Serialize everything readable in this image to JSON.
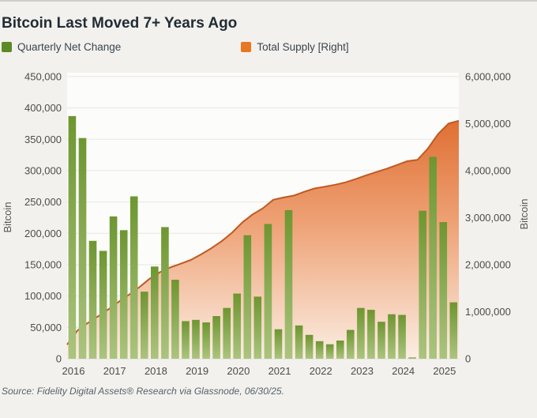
{
  "header": {
    "title": "Bitcoin Last Moved 7+ Years Ago"
  },
  "legend": [
    {
      "label": "Quarterly Net Change",
      "color": "#5d8a27"
    },
    {
      "label": "Total Supply [Right]",
      "color": "#e87722"
    }
  ],
  "footer": {
    "source": "Source: Fidelity Digital Assets® Research via Glassnode, 06/30/25."
  },
  "chart_data": {
    "type": "bar+area combo",
    "title": "Bitcoin Last Moved 7+ Years Ago",
    "grid": "horizontal, left-axis steps",
    "left_axis": {
      "title": "Bitcoin",
      "min": 0,
      "max": 450000,
      "tick_step": 50000,
      "tick_labels": [
        "450,000",
        "400,000",
        "350,000",
        "300,000",
        "250,000",
        "200,000",
        "150,000",
        "100,000",
        "50,000",
        "0"
      ],
      "tick_values": [
        450000,
        400000,
        350000,
        300000,
        250000,
        200000,
        150000,
        100000,
        50000,
        0
      ]
    },
    "right_axis": {
      "title": "Bitcoin",
      "min": 0,
      "max": 6000000,
      "tick_step": 1000000,
      "tick_labels": [
        "6,000,000",
        "5,000,000",
        "4,000,000",
        "3,000,000",
        "2,000,000",
        "1,000,000",
        "0"
      ],
      "tick_values": [
        6000000,
        5000000,
        4000000,
        3000000,
        2000000,
        1000000,
        0
      ]
    },
    "x_axis": {
      "year_labels": [
        "2016",
        "2017",
        "2018",
        "2019",
        "2020",
        "2021",
        "2022",
        "2023",
        "2024",
        "2025"
      ]
    },
    "series": [
      {
        "name": "Quarterly Net Change",
        "type": "bar",
        "axis": "left",
        "color_top": "#6d9630",
        "color_bottom": "#abc47f",
        "categories": [
          "2016 Q1",
          "2016 Q2",
          "2016 Q3",
          "2016 Q4",
          "2017 Q1",
          "2017 Q2",
          "2017 Q3",
          "2017 Q4",
          "2018 Q1",
          "2018 Q2",
          "2018 Q3",
          "2018 Q4",
          "2019 Q1",
          "2019 Q2",
          "2019 Q3",
          "2019 Q4",
          "2020 Q1",
          "2020 Q2",
          "2020 Q3",
          "2020 Q4",
          "2021 Q1",
          "2021 Q2",
          "2021 Q3",
          "2021 Q4",
          "2022 Q1",
          "2022 Q2",
          "2022 Q3",
          "2022 Q4",
          "2023 Q1",
          "2023 Q2",
          "2023 Q3",
          "2023 Q4",
          "2024 Q1",
          "2024 Q2",
          "2024 Q3",
          "2024 Q4",
          "2025 Q1",
          "2025 Q2"
        ],
        "values": [
          387000,
          352000,
          188000,
          172000,
          227000,
          205000,
          259000,
          107000,
          147000,
          210000,
          126000,
          60000,
          62000,
          58000,
          68000,
          81000,
          104000,
          197000,
          99000,
          215000,
          47000,
          237000,
          53000,
          38000,
          28000,
          23000,
          29000,
          46000,
          81000,
          78000,
          59000,
          71000,
          70000,
          2000,
          236000,
          322000,
          218000,
          90000
        ]
      },
      {
        "name": "Total Supply [Right]",
        "type": "area",
        "axis": "right",
        "line_color": "#bf5a22",
        "fill_top": "#de6b2d",
        "fill_mid": "#eea175",
        "fill_bottom": "#fbeee3",
        "x_year": [
          2016.0,
          2016.25,
          2016.5,
          2016.75,
          2017.0,
          2017.25,
          2017.5,
          2017.75,
          2018.0,
          2018.25,
          2018.5,
          2018.75,
          2019.0,
          2019.25,
          2019.5,
          2019.75,
          2020.0,
          2020.25,
          2020.5,
          2020.75,
          2021.0,
          2021.25,
          2021.5,
          2021.75,
          2022.0,
          2022.25,
          2022.5,
          2022.75,
          2023.0,
          2023.25,
          2023.5,
          2023.75,
          2024.0,
          2024.25,
          2024.5,
          2024.75,
          2025.0,
          2025.25,
          2025.5
        ],
        "values": [
          300000,
          600000,
          760000,
          900000,
          1050000,
          1210000,
          1360000,
          1520000,
          1700000,
          1840000,
          1940000,
          2020000,
          2100000,
          2220000,
          2350000,
          2500000,
          2680000,
          2900000,
          3070000,
          3200000,
          3380000,
          3430000,
          3470000,
          3550000,
          3620000,
          3660000,
          3700000,
          3750000,
          3820000,
          3900000,
          3970000,
          4040000,
          4120000,
          4200000,
          4230000,
          4470000,
          4780000,
          5000000,
          5060000
        ]
      }
    ]
  }
}
